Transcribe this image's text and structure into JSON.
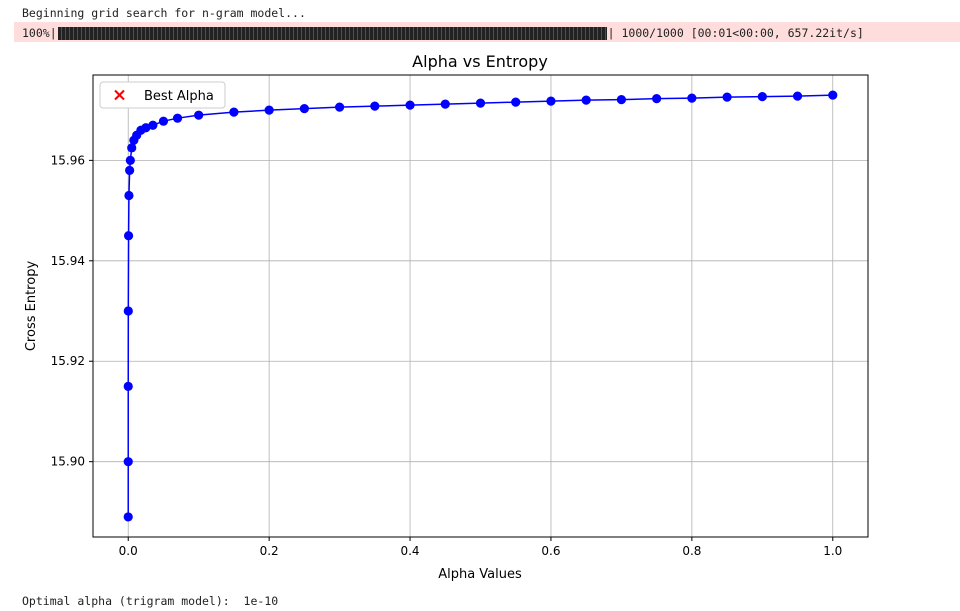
{
  "output": {
    "line1": "Beginning grid search for n-gram model...",
    "progress_prefix": "100%|",
    "progress_fraction": 1.0,
    "progress_suffix": "| 1000/1000 [00:01<00:00, 657.22it/s]",
    "result_line": "Optimal alpha (trigram model):  1e-10"
  },
  "colors": {
    "series": "#0000ff",
    "best_marker": "#ff0000",
    "stderr_bg": "#ffdddd"
  },
  "chart_data": {
    "type": "scatter",
    "title": "Alpha vs Entropy",
    "xlabel": "Alpha Values",
    "ylabel": "Cross Entropy",
    "xlim": [
      -0.05,
      1.05
    ],
    "ylim": [
      15.885,
      15.977
    ],
    "xticks": [
      0.0,
      0.2,
      0.4,
      0.6,
      0.8,
      1.0
    ],
    "xtick_labels": [
      "0.0",
      "0.2",
      "0.4",
      "0.6",
      "0.8",
      "1.0"
    ],
    "yticks": [
      15.9,
      15.92,
      15.94,
      15.96
    ],
    "ytick_labels": [
      "15.90",
      "15.92",
      "15.94",
      "15.96"
    ],
    "grid": true,
    "legend": {
      "placement": "top-left",
      "entries": [
        {
          "label": "Best Alpha",
          "marker": "x"
        }
      ]
    },
    "series": [
      {
        "style": "line-with-markers",
        "x": [
          1e-10,
          1e-06,
          1e-05,
          0.0001,
          0.0005,
          0.001,
          0.002,
          0.003,
          0.005,
          0.008,
          0.012,
          0.018,
          0.025,
          0.035,
          0.05,
          0.07,
          0.1,
          0.15,
          0.2,
          0.25,
          0.3,
          0.35,
          0.4,
          0.45,
          0.5,
          0.55,
          0.6,
          0.65,
          0.7,
          0.75,
          0.8,
          0.85,
          0.9,
          0.95,
          1.0
        ],
        "y": [
          15.889,
          15.9,
          15.915,
          15.93,
          15.945,
          15.953,
          15.958,
          15.96,
          15.9625,
          15.964,
          15.965,
          15.966,
          15.9665,
          15.967,
          15.9678,
          15.9684,
          15.969,
          15.9696,
          15.97,
          15.9703,
          15.9706,
          15.9708,
          15.971,
          15.9712,
          15.9714,
          15.9716,
          15.9718,
          15.972,
          15.9721,
          15.9723,
          15.9724,
          15.9726,
          15.9727,
          15.9728,
          15.973
        ]
      }
    ],
    "best_point": {
      "x": 1e-10,
      "label": "Best Alpha"
    }
  }
}
